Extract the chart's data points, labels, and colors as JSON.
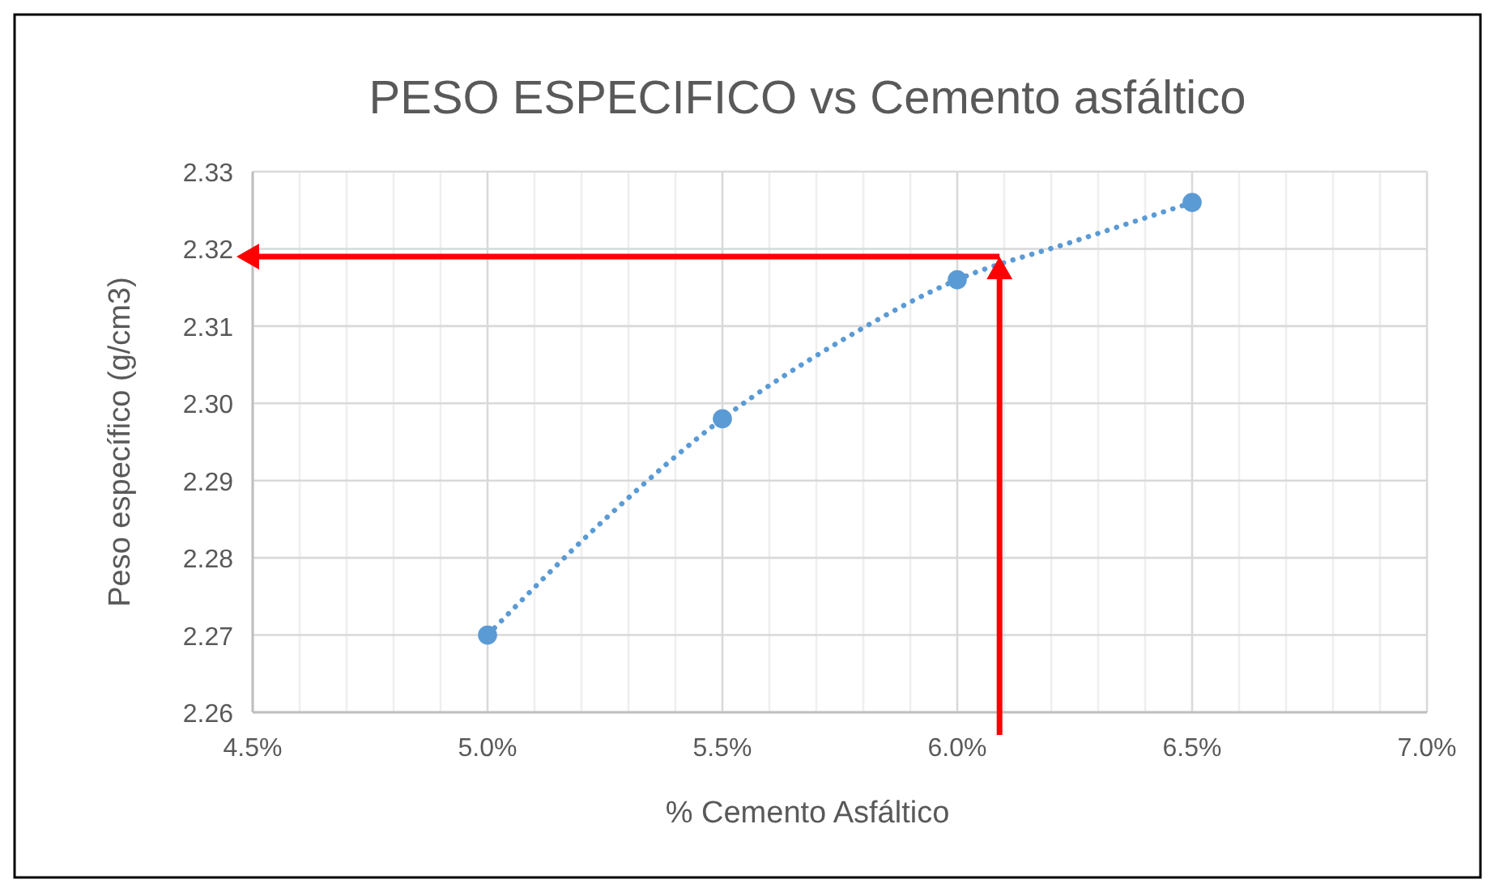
{
  "chart_data": {
    "type": "scatter",
    "title": "PESO ESPECIFICO vs Cemento asfáltico",
    "xlabel": "% Cemento Asfáltico",
    "ylabel": "Peso específico (g/cm3)",
    "series": [
      {
        "type": "line",
        "color": "#5b9bd5",
        "line_style": "dotted",
        "marker": "none",
        "x": [
          5.0,
          5.25,
          5.5,
          5.75,
          6.0,
          6.25,
          6.5
        ],
        "values": [
          2.27,
          2.285,
          2.298,
          2.308,
          2.316,
          2.321,
          2.326
        ]
      },
      {
        "color": "#5b9bd5",
        "marker": "circle",
        "x": [
          5.0,
          5.5,
          6.0,
          6.5
        ],
        "values": [
          2.27,
          2.298,
          2.316,
          2.326
        ]
      }
    ],
    "xlim": [
      4.5,
      7.0
    ],
    "xticks": [
      {
        "value": 4.5,
        "label": "4.5%"
      },
      {
        "value": 4.6,
        "label": null
      },
      {
        "value": 4.7,
        "label": null
      },
      {
        "value": 4.8,
        "label": null
      },
      {
        "value": 4.9,
        "label": null
      },
      {
        "value": 5.0,
        "label": "5.0%"
      },
      {
        "value": 5.1,
        "label": null
      },
      {
        "value": 5.2,
        "label": null
      },
      {
        "value": 5.3,
        "label": null
      },
      {
        "value": 5.4,
        "label": null
      },
      {
        "value": 5.5,
        "label": "5.5%"
      },
      {
        "value": 5.6,
        "label": null
      },
      {
        "value": 5.7,
        "label": null
      },
      {
        "value": 5.8,
        "label": null
      },
      {
        "value": 5.9,
        "label": null
      },
      {
        "value": 6.0,
        "label": "6.0%"
      },
      {
        "value": 6.1,
        "label": null
      },
      {
        "value": 6.2,
        "label": null
      },
      {
        "value": 6.3,
        "label": null
      },
      {
        "value": 6.4,
        "label": null
      },
      {
        "value": 6.5,
        "label": "6.5%"
      },
      {
        "value": 6.6,
        "label": null
      },
      {
        "value": 6.7,
        "label": null
      },
      {
        "value": 6.8,
        "label": null
      },
      {
        "value": 6.9,
        "label": null
      },
      {
        "value": 7.0,
        "label": "7.0%"
      }
    ],
    "ylim": [
      2.26,
      2.33
    ],
    "yticks": [
      {
        "value": 2.26,
        "label": "2.26"
      },
      {
        "value": 2.27,
        "label": "2.27"
      },
      {
        "value": 2.28,
        "label": "2.28"
      },
      {
        "value": 2.29,
        "label": "2.29"
      },
      {
        "value": 2.3,
        "label": "2.30"
      },
      {
        "value": 2.31,
        "label": "2.31"
      },
      {
        "value": 2.32,
        "label": "2.32"
      },
      {
        "value": 2.33,
        "label": "2.33"
      }
    ],
    "grid": true,
    "ref_lines": [
      {
        "axis": "x",
        "value": 6.09,
        "color": "#ff0000"
      },
      {
        "axis": "y",
        "value": 2.319,
        "color": "#ff0000"
      }
    ]
  }
}
